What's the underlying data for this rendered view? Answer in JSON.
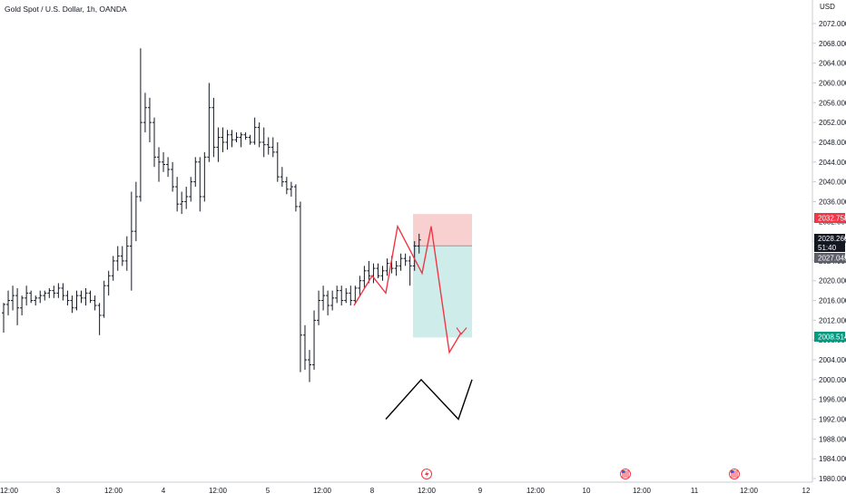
{
  "header": {
    "title": "Gold Spot / U.S. Dollar, 1h, OANDA"
  },
  "price_scale": {
    "currency": "USD"
  },
  "colors": {
    "candle": "#131722",
    "stop_zone": "#f7c8c8",
    "target_zone": "#c9ebe8",
    "path_red": "#f23645",
    "path_black": "#000000",
    "badge_red": "#f23645",
    "badge_black": "#131722",
    "badge_gray": "#5d606b",
    "badge_teal": "#089981"
  },
  "badges": {
    "stop": "2032.758",
    "last": "2028.260",
    "countdown": "51:40",
    "entry": "2027.045",
    "target": "2008.514"
  },
  "chart_data": {
    "type": "candlestick",
    "title": "Gold Spot / U.S. Dollar, 1h, OANDA",
    "ylim": [
      1979,
      2076
    ],
    "yticks": [
      "2072.000",
      "2068.000",
      "2064.000",
      "2060.000",
      "2056.000",
      "2052.000",
      "2048.000",
      "2044.000",
      "2040.000",
      "2036.000",
      "2032.000",
      "2028.000",
      "2024.000",
      "2020.000",
      "2016.000",
      "2012.000",
      "2008.000",
      "2004.000",
      "2000.000",
      "1996.000",
      "1992.000",
      "1988.000",
      "1984.000",
      "1980.000"
    ],
    "xticks": [
      "12:00",
      "3",
      "12:00",
      "4",
      "12:00",
      "5",
      "12:00",
      "8",
      "12:00",
      "9",
      "12:00",
      "10",
      "12:00",
      "11",
      "12:00",
      "12"
    ],
    "x_unit": "hour bars; labels mark 12:00 and date boundaries",
    "candles_ohlc": [
      [
        2013.5,
        2015.5,
        2009.5,
        2015.2
      ],
      [
        2015.2,
        2018.0,
        2013.0,
        2016.0
      ],
      [
        2016.0,
        2019.0,
        2014.0,
        2017.0
      ],
      [
        2017.0,
        2018.5,
        2011.0,
        2014.5
      ],
      [
        2014.5,
        2017.0,
        2013.0,
        2016.5
      ],
      [
        2016.5,
        2019.0,
        2015.0,
        2017.5
      ],
      [
        2017.5,
        2018.0,
        2015.5,
        2016.0
      ],
      [
        2016.0,
        2017.0,
        2015.0,
        2016.5
      ],
      [
        2016.5,
        2018.0,
        2015.5,
        2017.0
      ],
      [
        2017.0,
        2018.0,
        2016.0,
        2017.5
      ],
      [
        2017.5,
        2018.5,
        2016.5,
        2018.0
      ],
      [
        2018.0,
        2019.0,
        2016.5,
        2017.5
      ],
      [
        2017.5,
        2019.5,
        2016.5,
        2018.5
      ],
      [
        2018.5,
        2019.5,
        2016.0,
        2017.0
      ],
      [
        2017.0,
        2018.0,
        2015.0,
        2016.0
      ],
      [
        2016.0,
        2017.0,
        2013.5,
        2014.5
      ],
      [
        2014.5,
        2018.0,
        2014.0,
        2017.0
      ],
      [
        2017.0,
        2018.0,
        2015.5,
        2016.5
      ],
      [
        2016.5,
        2018.5,
        2015.0,
        2017.5
      ],
      [
        2017.5,
        2018.0,
        2015.5,
        2016.0
      ],
      [
        2016.0,
        2017.0,
        2014.0,
        2015.0
      ],
      [
        2015.0,
        2015.5,
        2009.0,
        2013.0
      ],
      [
        2013.0,
        2020.0,
        2012.5,
        2019.0
      ],
      [
        2019.0,
        2022.0,
        2017.0,
        2021.0
      ],
      [
        2021.0,
        2025.0,
        2020.0,
        2024.0
      ],
      [
        2024.0,
        2027.0,
        2022.0,
        2025.0
      ],
      [
        2025.0,
        2027.0,
        2023.0,
        2024.0
      ],
      [
        2024.0,
        2029.0,
        2022.0,
        2027.0
      ],
      [
        2027.0,
        2038.0,
        2018.0,
        2030.0
      ],
      [
        2030.0,
        2040.0,
        2028.0,
        2037.0
      ],
      [
        2037.0,
        2067.0,
        2036.0,
        2052.0
      ],
      [
        2052.0,
        2058.0,
        2050.0,
        2055.0
      ],
      [
        2055.0,
        2057.0,
        2048.0,
        2052.0
      ],
      [
        2052.0,
        2053.0,
        2043.0,
        2045.0
      ],
      [
        2045.0,
        2047.0,
        2040.0,
        2044.0
      ],
      [
        2044.0,
        2046.0,
        2042.0,
        2043.5
      ],
      [
        2043.5,
        2045.0,
        2041.0,
        2042.5
      ],
      [
        2042.5,
        2044.0,
        2038.0,
        2039.0
      ],
      [
        2039.0,
        2041.0,
        2034.0,
        2035.5
      ],
      [
        2035.5,
        2038.0,
        2033.5,
        2036.0
      ],
      [
        2036.0,
        2039.0,
        2034.5,
        2037.0
      ],
      [
        2037.0,
        2041.0,
        2036.0,
        2040.0
      ],
      [
        2040.0,
        2045.0,
        2039.0,
        2044.0
      ],
      [
        2044.0,
        2045.0,
        2034.0,
        2037.0
      ],
      [
        2037.0,
        2046.0,
        2036.0,
        2045.0
      ],
      [
        2045.0,
        2060.0,
        2044.0,
        2055.0
      ],
      [
        2055.0,
        2057.0,
        2045.0,
        2047.0
      ],
      [
        2047.0,
        2051.0,
        2044.0,
        2049.0
      ],
      [
        2049.0,
        2051.0,
        2046.0,
        2048.0
      ],
      [
        2048.0,
        2050.5,
        2046.5,
        2049.5
      ],
      [
        2049.5,
        2050.5,
        2047.0,
        2048.5
      ],
      [
        2048.5,
        2050.0,
        2048.0,
        2049.0
      ],
      [
        2049.0,
        2050.0,
        2047.0,
        2049.5
      ],
      [
        2049.5,
        2050.0,
        2048.5,
        2049.0
      ],
      [
        2049.0,
        2049.5,
        2047.5,
        2048.0
      ],
      [
        2048.0,
        2053.0,
        2047.5,
        2051.0
      ],
      [
        2051.0,
        2052.0,
        2047.0,
        2048.0
      ],
      [
        2048.0,
        2051.0,
        2045.0,
        2047.5
      ],
      [
        2047.5,
        2049.0,
        2045.5,
        2047.0
      ],
      [
        2047.0,
        2049.0,
        2045.0,
        2046.0
      ],
      [
        2046.0,
        2048.0,
        2040.0,
        2041.0
      ],
      [
        2041.0,
        2043.0,
        2039.0,
        2040.0
      ],
      [
        2040.0,
        2041.0,
        2037.5,
        2038.5
      ],
      [
        2038.5,
        2040.0,
        2037.0,
        2039.0
      ],
      [
        2039.0,
        2039.5,
        2034.0,
        2035.0
      ],
      [
        2035.0,
        2036.0,
        2001.5,
        2009.0
      ],
      [
        2009.0,
        2011.0,
        2002.0,
        2004.0
      ],
      [
        2004.0,
        2006.0,
        1999.5,
        2003.0
      ],
      [
        2003.0,
        2014.0,
        2002.0,
        2012.0
      ],
      [
        2012.0,
        2018.0,
        2011.0,
        2016.0
      ],
      [
        2016.0,
        2019.0,
        2014.0,
        2017.0
      ],
      [
        2017.0,
        2018.0,
        2013.0,
        2015.0
      ],
      [
        2015.0,
        2018.0,
        2014.0,
        2016.5
      ],
      [
        2016.5,
        2019.0,
        2015.5,
        2018.0
      ],
      [
        2018.0,
        2019.0,
        2015.0,
        2016.0
      ],
      [
        2016.0,
        2018.5,
        2015.5,
        2017.5
      ],
      [
        2017.5,
        2019.0,
        2015.0,
        2016.0
      ],
      [
        2016.0,
        2019.0,
        2015.5,
        2018.5
      ],
      [
        2018.5,
        2021.0,
        2017.0,
        2020.0
      ],
      [
        2020.0,
        2023.0,
        2018.5,
        2022.0
      ],
      [
        2022.0,
        2024.0,
        2019.5,
        2021.0
      ],
      [
        2021.0,
        2023.5,
        2019.5,
        2022.5
      ],
      [
        2022.5,
        2023.5,
        2020.5,
        2021.0
      ],
      [
        2021.0,
        2023.0,
        2020.0,
        2022.0
      ],
      [
        2022.0,
        2024.5,
        2021.0,
        2023.5
      ],
      [
        2023.5,
        2025.0,
        2021.5,
        2022.5
      ],
      [
        2022.5,
        2024.0,
        2021.0,
        2023.0
      ],
      [
        2023.0,
        2025.5,
        2022.0,
        2024.5
      ],
      [
        2024.5,
        2025.5,
        2023.0,
        2024.0
      ],
      [
        2024.0,
        2025.0,
        2019.0,
        2023.0
      ],
      [
        2023.0,
        2028.0,
        2022.0,
        2027.0
      ],
      [
        2027.0,
        2029.5,
        2025.5,
        2028.26
      ]
    ],
    "annotations": {
      "stop_zone": [
        2032.758,
        2027.045
      ],
      "target_zone": [
        2027.045,
        2008.514
      ],
      "red_projection_path": [
        [
          2015.0
        ],
        [
          2018.5
        ],
        [
          2020.5
        ],
        [
          2031.0
        ],
        [
          2017.0
        ],
        [
          2027.5
        ],
        [
          2021.5
        ],
        [
          2031.0
        ],
        [
          2005.5
        ],
        [
          2009.5
        ],
        [
          2009.0
        ]
      ],
      "black_path_prices": [
        1992.0,
        2000.0,
        1992.0,
        2000.0
      ]
    },
    "event_markers": [
      "lightning",
      "us-flag",
      "us-flag"
    ]
  }
}
